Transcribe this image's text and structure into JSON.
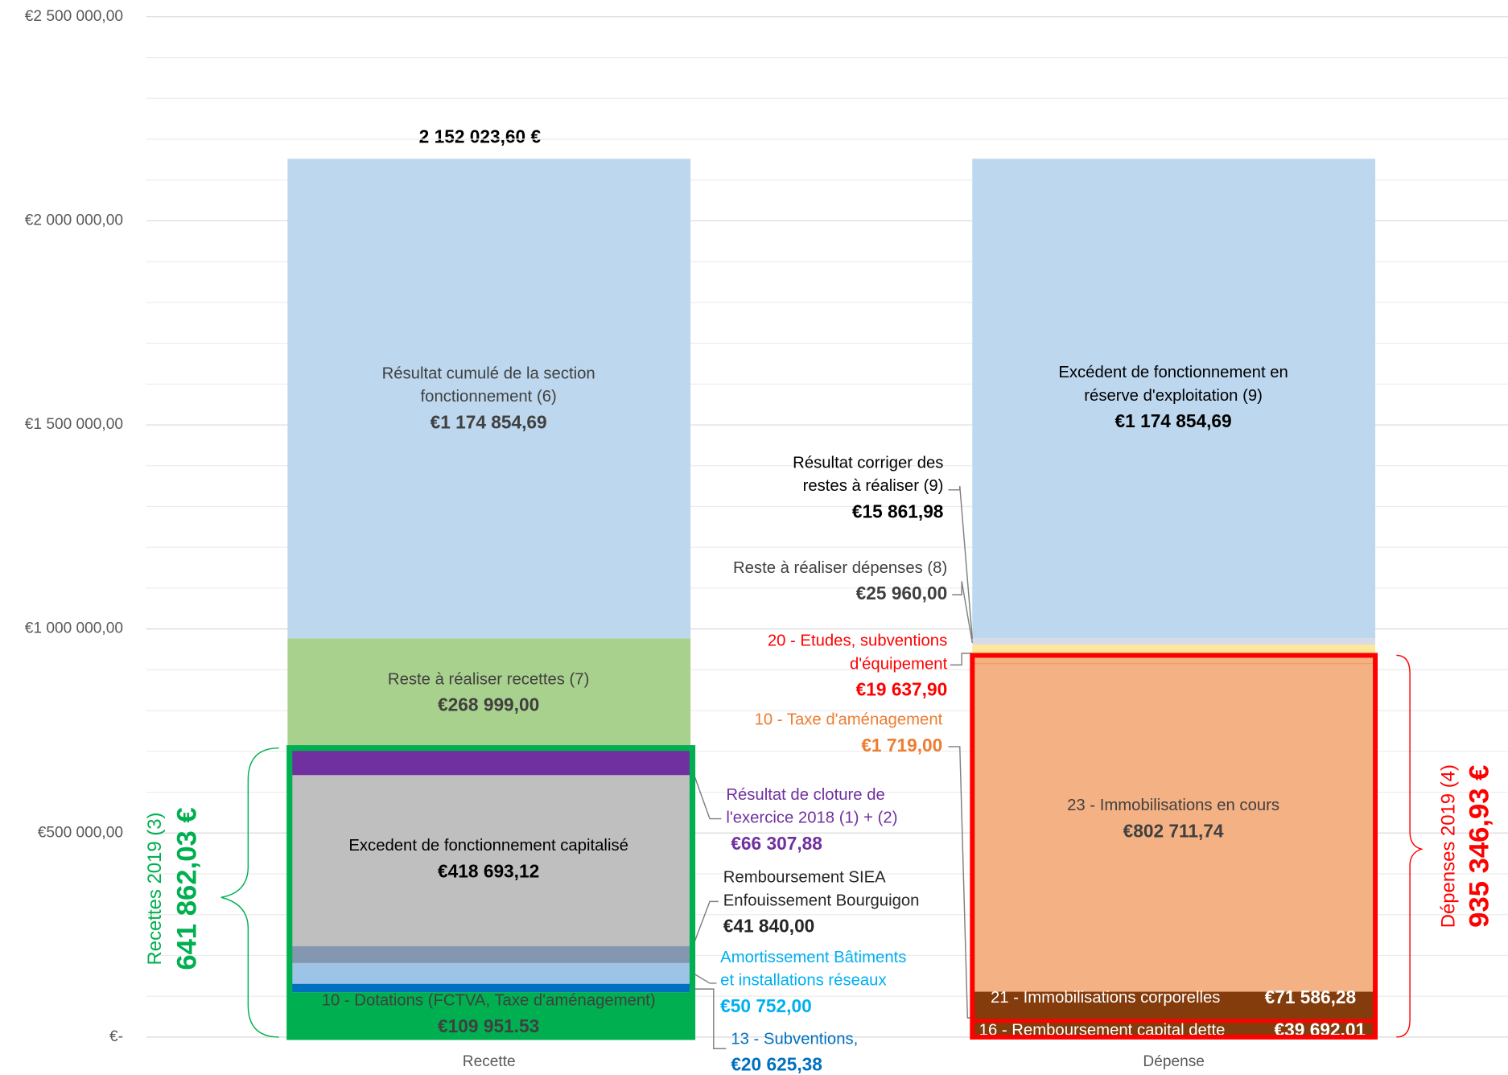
{
  "chart_data": {
    "type": "stacked_bar",
    "categories": [
      "Recette",
      "Dépense"
    ],
    "ylim": [
      0,
      2500000
    ],
    "yticks": [
      {
        "value": 0,
        "label": "€-"
      },
      {
        "value": 500000,
        "label": "€500 000,00"
      },
      {
        "value": 1000000,
        "label": "€1 000 000,00"
      },
      {
        "value": 1500000,
        "label": "€1 500 000,00"
      },
      {
        "value": 2000000,
        "label": "€2 000 000,00"
      },
      {
        "value": 2500000,
        "label": "€2 500 000,00"
      }
    ],
    "minor_yticks": [
      100000,
      200000,
      300000,
      400000,
      600000,
      700000,
      800000,
      900000,
      1100000,
      1200000,
      1300000,
      1400000,
      1600000,
      1700000,
      1800000,
      1900000,
      2100000,
      2200000,
      2300000,
      2400000
    ],
    "grid": true,
    "series": [
      {
        "name": "10 - Dotations (FCTVA, Taxe d'aménagement)",
        "color": "#00b050",
        "values": [
          109951.53,
          null
        ],
        "value_labels": [
          "€109 951.53",
          null
        ]
      },
      {
        "name": "13 - Subventions,",
        "color": "#0070c0",
        "values": [
          20625.38,
          null
        ],
        "value_labels": [
          "€20 625,38",
          null
        ]
      },
      {
        "name": "Amortissement Bâtiments et installations réseaux",
        "color": "#9dc3e6",
        "values": [
          50752.0,
          null
        ],
        "value_labels": [
          "€50 752,00",
          null
        ]
      },
      {
        "name": "Remboursement SIEA Enfouissement Bourguigon",
        "color": "#8497b0",
        "values": [
          41840.0,
          null
        ],
        "value_labels": [
          "€41 840,00",
          null
        ]
      },
      {
        "name": "Excedent de fonctionnement capitalisé",
        "color": "#bfbfbf",
        "values": [
          418693.12,
          null
        ],
        "value_labels": [
          "€418 693,12",
          null
        ]
      },
      {
        "name": "Résultat de cloture de l'exercice 2018 (1) + (2)",
        "color": "#7030a0",
        "values": [
          66307.88,
          null
        ],
        "value_labels": [
          "€66 307,88",
          null
        ]
      },
      {
        "name": "Reste à réaliser recettes (7)",
        "color": "#a9d18e",
        "values": [
          268999.0,
          null
        ],
        "value_labels": [
          "€268 999,00",
          null
        ]
      },
      {
        "name": "Résultat cumulé de la section fonctionnement (6)",
        "color": "#bdd7ee",
        "values": [
          1174854.69,
          null
        ],
        "value_labels": [
          "€1 174 854,69",
          null
        ]
      },
      {
        "name": "16 - Remboursement capital dette",
        "color": "#843c0c",
        "values": [
          null,
          39692.01
        ],
        "value_labels": [
          null,
          "€39 692,01"
        ]
      },
      {
        "name": "21 - Immobilisations corporelles",
        "color": "#843c0c",
        "values": [
          null,
          71586.28
        ],
        "value_labels": [
          null,
          "€71 586,28"
        ]
      },
      {
        "name": "23 - Immobilisations en cours",
        "color": "#f4b183",
        "values": [
          null,
          802711.74
        ],
        "value_labels": [
          null,
          "€802 711,74"
        ]
      },
      {
        "name": "10 - Taxe d'aménagement",
        "color": "#ed7d31",
        "values": [
          null,
          1719.0
        ],
        "value_labels": [
          null,
          "€1 719,00"
        ]
      },
      {
        "name": "20 - Etudes, subventions d'équipement",
        "color": "#f4b183",
        "values": [
          null,
          19637.9
        ],
        "value_labels": [
          null,
          "€19 637,90"
        ]
      },
      {
        "name": "Reste à réaliser dépenses (8)",
        "color": "#ffe699",
        "values": [
          null,
          25960.0
        ],
        "value_labels": [
          null,
          "€25 960,00"
        ]
      },
      {
        "name": "Résultat corriger des restes à réaliser (9)",
        "color": "#d6dce5",
        "values": [
          null,
          15861.98
        ],
        "value_labels": [
          null,
          "€15 861,98"
        ]
      },
      {
        "name": "Excédent de fonctionnement en réserve d'exploitation (9)",
        "color": "#bdd7ee",
        "values": [
          null,
          1174854.69
        ],
        "value_labels": [
          null,
          "€1 174 854,69"
        ]
      }
    ],
    "total": {
      "value": 2152023.6,
      "label": "2 152 023,60 €"
    },
    "brackets": [
      {
        "label": "Recettes 2019 (3)",
        "value": 641862.03,
        "value_label": "641 862,03 €",
        "color": "#00b050"
      },
      {
        "label": "Dépenses 2019 (4)",
        "value": 935346.93,
        "value_label": "935 346,93 €",
        "color": "#ff0000"
      }
    ]
  }
}
